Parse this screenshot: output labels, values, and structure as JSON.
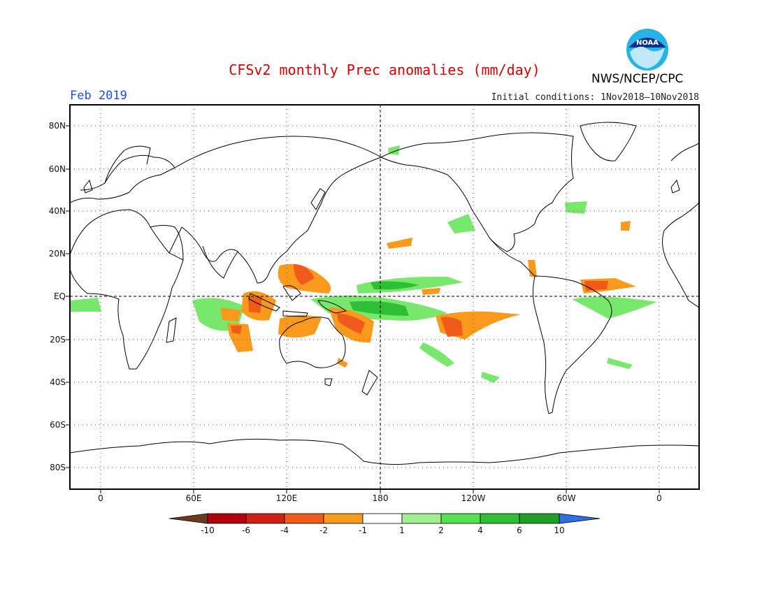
{
  "header": {
    "title": "CFSv2 monthly Prec anomalies (mm/day)",
    "month": "Feb 2019",
    "initial_conditions": "Initial conditions: 1Nov2018–10Nov2018",
    "organization": "NWS/NCEP/CPC",
    "logo_text": "NOAA"
  },
  "map": {
    "projection": "cylindrical-equidistant",
    "center_longitude": 180,
    "lat_range": [
      -90,
      90
    ],
    "lat_labels": [
      "80N",
      "60N",
      "40N",
      "20N",
      "EQ",
      "20S",
      "40S",
      "60S",
      "80S"
    ],
    "lon_labels": [
      "0",
      "60E",
      "120E",
      "180",
      "120W",
      "60W",
      "0"
    ],
    "gridlines": "dotted"
  },
  "colorbar": {
    "ticks": [
      "-10",
      "-6",
      "-4",
      "-2",
      "-1",
      "1",
      "2",
      "4",
      "6",
      "10"
    ],
    "colors": [
      "#6b3a1f",
      "#b3000d",
      "#d11f12",
      "#f05a1a",
      "#f99a1d",
      "#ffffff",
      "#9ff08e",
      "#55e052",
      "#2fbf34",
      "#1f9f27",
      "#2f6fe0"
    ]
  },
  "icons": {
    "logo": "noaa-logo-icon"
  }
}
